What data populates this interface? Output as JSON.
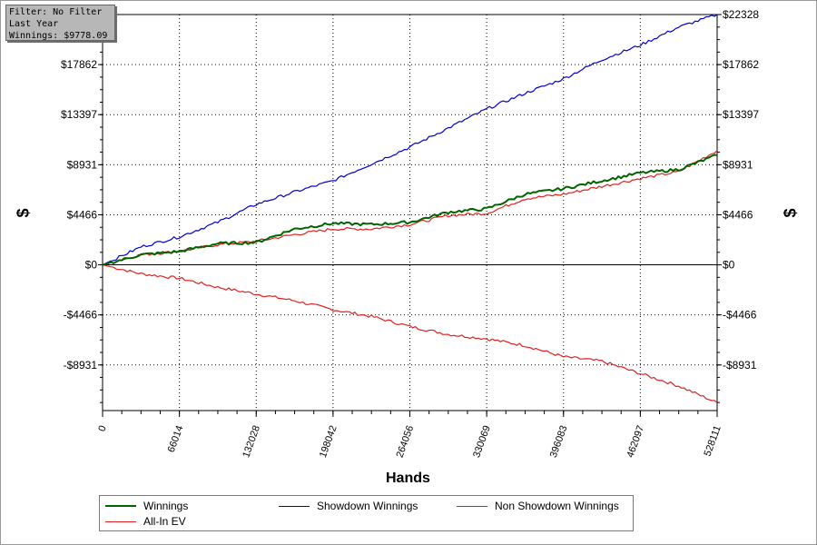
{
  "filter_box": {
    "line1": "Filter: No Filter",
    "line2": "Last Year",
    "line3": "Winnings: $9778.09"
  },
  "chart_data": {
    "type": "line",
    "xlabel": "Hands",
    "ylabel": "$",
    "xlim": [
      0,
      528111
    ],
    "ylim": [
      -13000,
      22328
    ],
    "x_ticks": [
      0,
      66014,
      132028,
      198042,
      264056,
      330069,
      396083,
      462097,
      528111
    ],
    "y_ticks": [
      -8931,
      -4466,
      0,
      4466,
      8931,
      13397,
      17862,
      22328
    ],
    "y_tick_labels": [
      "-$8931",
      "-$4466",
      "$0",
      "$4466",
      "$8931",
      "$13397",
      "$17862",
      "$22328"
    ],
    "grid": true,
    "legend_position": "bottom",
    "series": [
      {
        "name": "Winnings",
        "color": "#006400",
        "x": [
          0,
          33000,
          66014,
          99000,
          132028,
          165000,
          198042,
          231000,
          264056,
          297000,
          330069,
          363000,
          396083,
          429000,
          462097,
          495000,
          528111
        ],
        "y": [
          0,
          900,
          1200,
          1900,
          2000,
          3200,
          3700,
          3600,
          3800,
          4700,
          5000,
          6300,
          6800,
          7500,
          8200,
          8500,
          9778
        ]
      },
      {
        "name": "Showdown Winnings",
        "color": "#0000cd",
        "x": [
          0,
          33000,
          66014,
          99000,
          132028,
          165000,
          198042,
          231000,
          264056,
          297000,
          330069,
          363000,
          396083,
          429000,
          462097,
          495000,
          528111
        ],
        "y": [
          0,
          1600,
          2500,
          3800,
          5400,
          6500,
          7500,
          9000,
          10500,
          12200,
          13900,
          15300,
          16600,
          18300,
          19600,
          21200,
          22328
        ]
      },
      {
        "name": "Non Showdown Winnings",
        "color": "#e02020",
        "x": [
          0,
          33000,
          66014,
          99000,
          132028,
          165000,
          198042,
          231000,
          264056,
          297000,
          330069,
          363000,
          396083,
          429000,
          462097,
          495000,
          528111
        ],
        "y": [
          0,
          900,
          1200,
          1800,
          2100,
          2700,
          3200,
          3200,
          3600,
          4400,
          4600,
          5900,
          6300,
          7000,
          7700,
          8300,
          10200
        ]
      },
      {
        "name": "All-In EV",
        "color": "#e02020",
        "x": [
          0,
          33000,
          66014,
          99000,
          132028,
          165000,
          198042,
          231000,
          264056,
          297000,
          330069,
          363000,
          396083,
          429000,
          462097,
          495000,
          528111
        ],
        "y": [
          0,
          -800,
          -1200,
          -2000,
          -2600,
          -3200,
          -4000,
          -4600,
          -5500,
          -6200,
          -6600,
          -7200,
          -8200,
          -8600,
          -9700,
          -10800,
          -12300
        ]
      }
    ]
  }
}
